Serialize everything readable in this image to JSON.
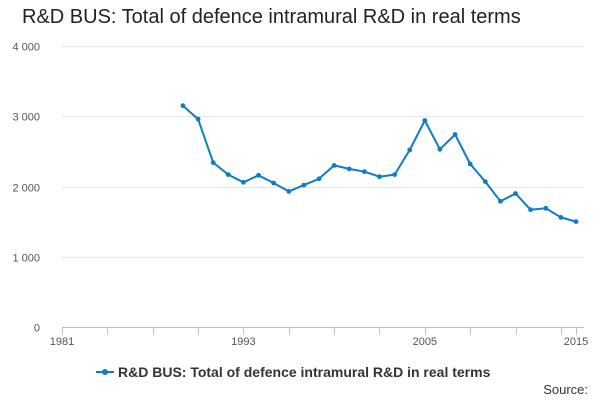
{
  "page": {
    "title": "R&D BUS: Total of defence intramural R&D in real terms",
    "source_label": "Source:"
  },
  "colors": {
    "series": "#0e7dc2",
    "grid": "#e6e6e6",
    "axis": "#c0c0c0"
  },
  "chart_data": {
    "type": "line",
    "title": "R&D BUS: Total of defence intramural R&D in real terms",
    "xlabel": "",
    "ylabel": "",
    "xlim": [
      1981,
      2015
    ],
    "ylim": [
      0,
      4000
    ],
    "x_ticks": [
      1981,
      1993,
      2005,
      2015
    ],
    "x_tick_labels": [
      "1981",
      "1993",
      "2005",
      "2015"
    ],
    "y_ticks": [
      0,
      1000,
      2000,
      3000,
      4000
    ],
    "y_tick_labels": [
      "0",
      "1 000",
      "2 000",
      "3 000",
      "4 000"
    ],
    "grid": true,
    "legend": "bottom",
    "series": [
      {
        "name": "R&D BUS: Total of defence intramural R&D in real terms",
        "x": [
          1989,
          1990,
          1991,
          1992,
          1993,
          1994,
          1995,
          1996,
          1997,
          1998,
          1999,
          2000,
          2001,
          2002,
          2003,
          2004,
          2005,
          2006,
          2007,
          2008,
          2009,
          2010,
          2011,
          2012,
          2013,
          2014,
          2015
        ],
        "values": [
          3150,
          2960,
          2340,
          2170,
          2060,
          2160,
          2050,
          1930,
          2020,
          2110,
          2300,
          2250,
          2210,
          2140,
          2170,
          2520,
          2940,
          2530,
          2740,
          2320,
          2070,
          1790,
          1900,
          1670,
          1690,
          1560,
          1500
        ]
      }
    ]
  }
}
